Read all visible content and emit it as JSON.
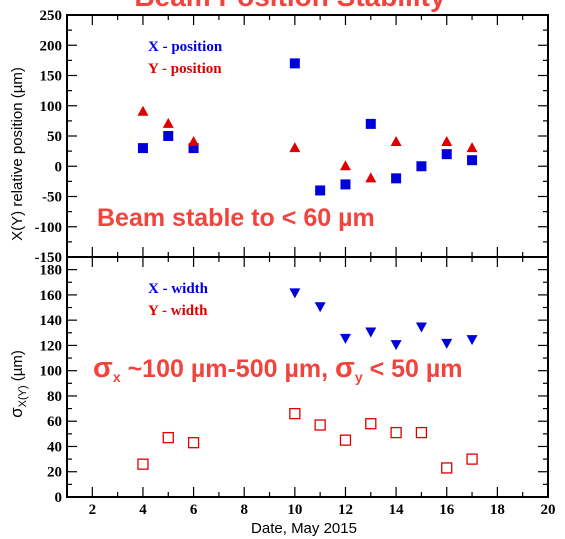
{
  "title": "Beam Position Stability",
  "colors": {
    "x_series": "#0000dd",
    "y_series": "#dd0000",
    "annotation": "#f0443c",
    "frame": "#000000"
  },
  "chart_data": [
    {
      "type": "scatter",
      "panel": "top",
      "xlabel": "",
      "ylabel": "X(Y) relative position (µm)",
      "xlim": [
        1,
        20
      ],
      "ylim": [
        -150,
        250
      ],
      "yticks": [
        250,
        200,
        150,
        100,
        50,
        0,
        -50,
        -100,
        -150
      ],
      "grid": false,
      "legend": "top-left",
      "annotation": "Beam stable to < 60 µm",
      "series": [
        {
          "name": "X - position",
          "marker": "square",
          "x": [
            4,
            5,
            6,
            10,
            11,
            12,
            13,
            14,
            15,
            16,
            17
          ],
          "y": [
            30,
            50,
            30,
            170,
            -40,
            -30,
            70,
            -20,
            0,
            20,
            10
          ]
        },
        {
          "name": "Y - position",
          "marker": "triangle-up",
          "x": [
            4,
            5,
            6,
            10,
            12,
            13,
            14,
            16,
            17
          ],
          "y": [
            90,
            70,
            40,
            30,
            0,
            -20,
            40,
            40,
            30
          ]
        }
      ]
    },
    {
      "type": "scatter",
      "panel": "bottom",
      "xlabel": "Date, May 2015",
      "ylabel_main": "σ",
      "ylabel_sub": "X(Y)",
      "ylabel_unit": " (µm)",
      "xlim": [
        1,
        20
      ],
      "ylim": [
        0,
        190
      ],
      "xticks": [
        2,
        4,
        6,
        8,
        10,
        12,
        14,
        16,
        18,
        20
      ],
      "yticks": [
        180,
        160,
        140,
        120,
        100,
        80,
        60,
        40,
        20,
        0
      ],
      "grid": false,
      "legend": "top-left",
      "annotation": {
        "p1": "σ",
        "s1": "x",
        "p2": " ~100 µm-500 µm, ",
        "p3": "σ",
        "s2": "y",
        "p4": " < 50 µm"
      },
      "series": [
        {
          "name": "X - width",
          "marker": "triangle-down",
          "x": [
            10,
            11,
            12,
            13,
            14,
            15,
            16,
            17
          ],
          "y": [
            162,
            151,
            126,
            131,
            121,
            135,
            122,
            125
          ]
        },
        {
          "name": "Y - width",
          "marker": "square-open",
          "x": [
            4,
            5,
            6,
            10,
            11,
            12,
            13,
            14,
            15,
            16,
            17
          ],
          "y": [
            26,
            47,
            43,
            66,
            57,
            45,
            58,
            51,
            51,
            23,
            30
          ]
        }
      ]
    }
  ]
}
